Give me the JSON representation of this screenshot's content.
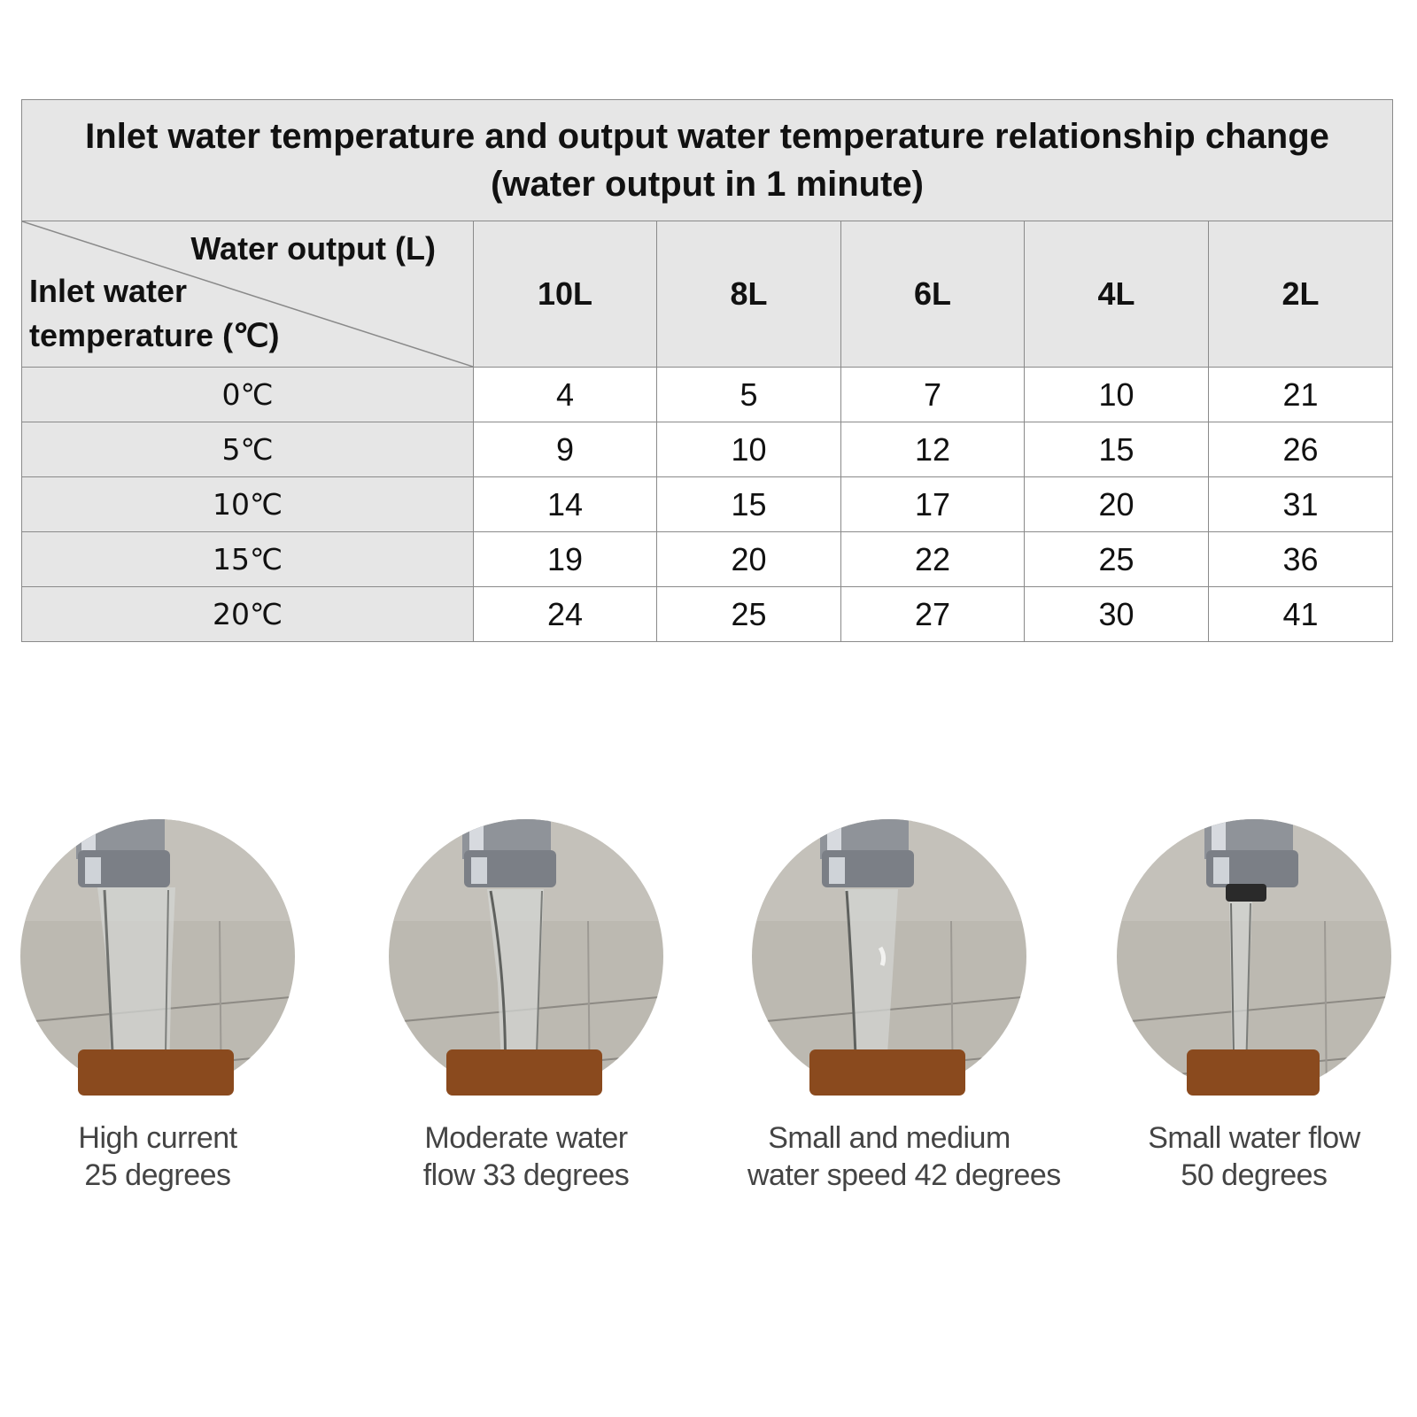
{
  "table": {
    "title_line1": "Inlet water temperature and output water temperature relationship change",
    "title_line2": "(water output in 1 minute)",
    "corner_top": "Water output (L)",
    "corner_bottom_line1": "Inlet water",
    "corner_bottom_line2": "temperature (℃)",
    "columns": [
      "10L",
      "8L",
      "6L",
      "4L",
      "2L"
    ],
    "rows": [
      {
        "label": "0℃",
        "values": [
          "4",
          "5",
          "7",
          "10",
          "21"
        ]
      },
      {
        "label": "5℃",
        "values": [
          "9",
          "10",
          "12",
          "15",
          "26"
        ]
      },
      {
        "label": "10℃",
        "values": [
          "14",
          "15",
          "17",
          "20",
          "31"
        ]
      },
      {
        "label": "15℃",
        "values": [
          "19",
          "20",
          "22",
          "25",
          "36"
        ]
      },
      {
        "label": "20℃",
        "values": [
          "24",
          "25",
          "27",
          "30",
          "41"
        ]
      }
    ]
  },
  "photos": [
    {
      "line1": "High current",
      "line2": "25 degrees"
    },
    {
      "line1": "Moderate water",
      "line2": "flow 33 degrees"
    },
    {
      "line1": "Small and medium",
      "line2": "water speed 42 degrees"
    },
    {
      "line1": "Small water flow",
      "line2": "50 degrees"
    }
  ],
  "colors": {
    "header_bg": "#e6e6e6",
    "plaque": "#8a4a1e",
    "tile_wall": "#b9b6ae"
  }
}
